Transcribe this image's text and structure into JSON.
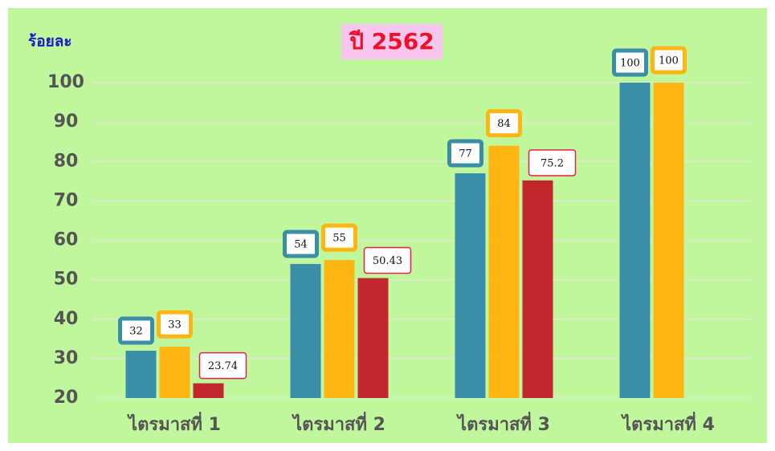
{
  "chart_data": {
    "type": "bar",
    "title": "ปี 2562",
    "y_label": "ร้อยละ",
    "categories": [
      "ไตรมาสที่ 1",
      "ไตรมาสที่ 2",
      "ไตรมาสที่ 3",
      "ไตรมาสที่ 4"
    ],
    "series": [
      {
        "color": "#3a8ea8",
        "values": [
          32,
          54,
          77,
          100
        ]
      },
      {
        "color": "#ffb612",
        "values": [
          33,
          55,
          84,
          100
        ]
      },
      {
        "color": "#c1272d",
        "values": [
          23.74,
          50.43,
          75.2,
          null
        ]
      }
    ],
    "ylim": [
      20,
      100
    ],
    "yticks": [
      20,
      30,
      40,
      50,
      60,
      70,
      80,
      90,
      100
    ],
    "grid": true
  }
}
